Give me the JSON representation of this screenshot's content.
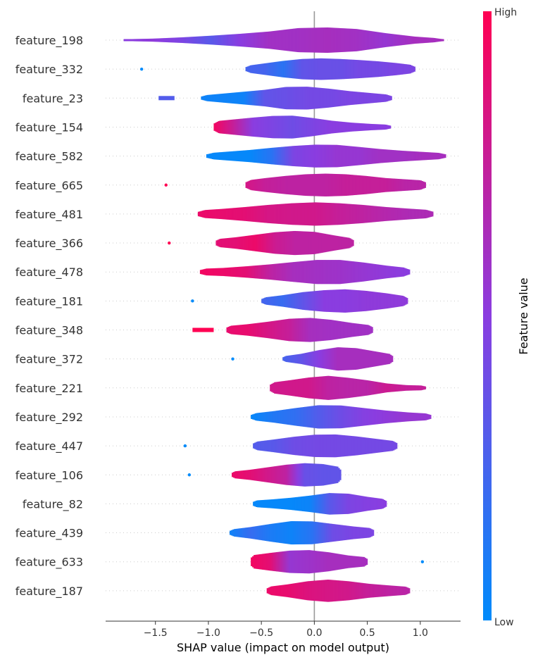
{
  "chart_data": {
    "type": "violin",
    "xlabel": "SHAP value (impact on model output)",
    "xlim": [
      -1.97,
      1.38
    ],
    "xticks": [
      -1.5,
      -1.0,
      -0.5,
      0.0,
      0.5,
      1.0
    ],
    "xtick_labels": [
      "−1.5",
      "−1.0",
      "−0.5",
      "0.0",
      "0.5",
      "1.0"
    ],
    "colorbar": {
      "title": "Feature value",
      "high_label": "High",
      "low_label": "Low",
      "low_color": "#008bfb",
      "high_color": "#ff0052"
    },
    "features": [
      {
        "name": "feature_198",
        "min": -1.8,
        "max": 1.22,
        "outliers": [],
        "w": [
          0.07,
          0.12,
          0.22,
          0.35,
          0.5,
          0.68,
          0.95,
          1.0,
          0.88,
          0.55,
          0.28,
          0.12
        ],
        "c": [
          0.5,
          0.52,
          0.45,
          0.32,
          0.5,
          0.6,
          0.6,
          0.62,
          0.6,
          0.55,
          0.62,
          0.62
        ]
      },
      {
        "name": "feature_332",
        "min": -0.65,
        "max": 0.95,
        "outliers": [
          {
            "x": -1.63,
            "c": 0.0
          }
        ],
        "w": [
          0.25,
          0.45,
          0.65,
          0.8,
          0.85,
          0.8,
          0.72,
          0.62,
          0.48,
          0.3
        ],
        "c": [
          0.25,
          0.25,
          0.15,
          0.35,
          0.38,
          0.38,
          0.42,
          0.42,
          0.45,
          0.45
        ]
      },
      {
        "name": "feature_23",
        "min": -1.07,
        "max": 0.73,
        "outliers": [],
        "segments": [
          {
            "from": -1.47,
            "to": -1.32,
            "c": 0.3
          }
        ],
        "w": [
          0.2,
          0.35,
          0.5,
          0.65,
          0.88,
          0.9,
          0.75,
          0.55,
          0.4,
          0.25
        ],
        "c": [
          0.05,
          0.05,
          0.05,
          0.35,
          0.38,
          0.42,
          0.42,
          0.45,
          0.45,
          0.45
        ]
      },
      {
        "name": "feature_154",
        "min": -0.95,
        "max": 0.72,
        "outliers": [],
        "w": [
          0.45,
          0.6,
          0.75,
          0.88,
          0.9,
          0.72,
          0.5,
          0.35,
          0.25,
          0.18
        ],
        "c": [
          0.95,
          0.75,
          0.5,
          0.45,
          0.4,
          0.45,
          0.5,
          0.5,
          0.5,
          0.5
        ]
      },
      {
        "name": "feature_582",
        "min": -1.02,
        "max": 1.24,
        "outliers": [],
        "w": [
          0.22,
          0.35,
          0.48,
          0.65,
          0.8,
          0.9,
          0.88,
          0.72,
          0.55,
          0.42,
          0.32,
          0.22
        ],
        "c": [
          0.02,
          0.02,
          0.02,
          0.15,
          0.45,
          0.5,
          0.55,
          0.55,
          0.6,
          0.6,
          0.62,
          0.62
        ]
      },
      {
        "name": "feature_665",
        "min": -0.65,
        "max": 1.05,
        "outliers": [
          {
            "x": -1.4,
            "c": 1.0
          }
        ],
        "w": [
          0.35,
          0.55,
          0.72,
          0.85,
          0.9,
          0.85,
          0.72,
          0.55,
          0.45,
          0.35
        ],
        "c": [
          0.82,
          0.75,
          0.72,
          0.72,
          0.72,
          0.75,
          0.75,
          0.75,
          0.7,
          0.7
        ]
      },
      {
        "name": "feature_481",
        "min": -1.1,
        "max": 1.12,
        "outliers": [],
        "w": [
          0.28,
          0.4,
          0.55,
          0.72,
          0.85,
          0.92,
          0.85,
          0.72,
          0.55,
          0.42,
          0.3
        ],
        "c": [
          0.92,
          0.9,
          0.88,
          0.82,
          0.8,
          0.8,
          0.75,
          0.72,
          0.68,
          0.65,
          0.65
        ]
      },
      {
        "name": "feature_366",
        "min": -0.93,
        "max": 0.37,
        "outliers": [
          {
            "x": -1.37,
            "c": 1.0
          }
        ],
        "w": [
          0.3,
          0.45,
          0.65,
          0.85,
          0.95,
          0.88,
          0.6,
          0.35
        ],
        "c": [
          0.88,
          0.88,
          0.92,
          0.78,
          0.72,
          0.72,
          0.72,
          0.72
        ]
      },
      {
        "name": "feature_478",
        "min": -1.08,
        "max": 0.9,
        "outliers": [],
        "w": [
          0.25,
          0.32,
          0.45,
          0.6,
          0.78,
          0.95,
          0.95,
          0.75,
          0.5,
          0.3
        ],
        "c": [
          0.95,
          0.92,
          0.88,
          0.72,
          0.62,
          0.6,
          0.58,
          0.55,
          0.52,
          0.5
        ]
      },
      {
        "name": "feature_181",
        "min": -0.5,
        "max": 0.88,
        "outliers": [
          {
            "x": -1.15,
            "c": 0.0
          }
        ],
        "w": [
          0.25,
          0.45,
          0.7,
          0.85,
          0.92,
          0.8,
          0.6,
          0.35
        ],
        "c": [
          0.25,
          0.2,
          0.35,
          0.5,
          0.5,
          0.52,
          0.52,
          0.52
        ]
      },
      {
        "name": "feature_348",
        "min": -0.83,
        "max": 0.55,
        "outliers": [],
        "segments": [
          {
            "from": -1.15,
            "to": -0.95,
            "c": 1.0
          }
        ],
        "w": [
          0.3,
          0.45,
          0.65,
          0.88,
          0.95,
          0.8,
          0.55,
          0.35
        ],
        "c": [
          0.9,
          0.9,
          0.82,
          0.75,
          0.62,
          0.6,
          0.6,
          0.6
        ]
      },
      {
        "name": "feature_372",
        "min": -0.3,
        "max": 0.74,
        "outliers": [
          {
            "x": -0.77,
            "c": 0.0
          }
        ],
        "w": [
          0.2,
          0.4,
          0.7,
          0.92,
          0.85,
          0.6,
          0.35
        ],
        "c": [
          0.25,
          0.35,
          0.5,
          0.62,
          0.62,
          0.62,
          0.62
        ]
      },
      {
        "name": "feature_221",
        "min": -0.42,
        "max": 1.05,
        "outliers": [],
        "w": [
          0.4,
          0.6,
          0.82,
          0.95,
          0.8,
          0.6,
          0.35,
          0.22,
          0.18
        ],
        "c": [
          0.8,
          0.8,
          0.8,
          0.72,
          0.7,
          0.7,
          0.78,
          0.75,
          0.75
        ]
      },
      {
        "name": "feature_292",
        "min": -0.6,
        "max": 1.1,
        "outliers": [],
        "w": [
          0.25,
          0.45,
          0.7,
          0.92,
          0.9,
          0.7,
          0.5,
          0.35,
          0.25
        ],
        "c": [
          0.02,
          0.12,
          0.18,
          0.3,
          0.4,
          0.48,
          0.52,
          0.55,
          0.55
        ]
      },
      {
        "name": "feature_447",
        "min": -0.58,
        "max": 0.78,
        "outliers": [
          {
            "x": -1.22,
            "c": 0.0
          }
        ],
        "w": [
          0.3,
          0.5,
          0.72,
          0.88,
          0.9,
          0.75,
          0.55,
          0.35
        ],
        "c": [
          0.3,
          0.32,
          0.4,
          0.42,
          0.42,
          0.42,
          0.42,
          0.42
        ]
      },
      {
        "name": "feature_106",
        "min": -0.78,
        "max": 0.25,
        "outliers": [
          {
            "x": -1.18,
            "c": 0.0
          }
        ],
        "w": [
          0.25,
          0.4,
          0.6,
          0.8,
          0.92,
          0.85,
          0.6
        ],
        "c": [
          0.92,
          0.88,
          0.8,
          0.72,
          0.38,
          0.35,
          0.35
        ]
      },
      {
        "name": "feature_82",
        "min": -0.58,
        "max": 0.68,
        "outliers": [],
        "w": [
          0.25,
          0.35,
          0.48,
          0.65,
          0.85,
          0.8,
          0.55,
          0.35
        ],
        "c": [
          0.02,
          0.02,
          0.02,
          0.05,
          0.32,
          0.45,
          0.48,
          0.5
        ]
      },
      {
        "name": "feature_439",
        "min": -0.8,
        "max": 0.56,
        "outliers": [],
        "w": [
          0.25,
          0.45,
          0.7,
          0.92,
          0.9,
          0.7,
          0.5,
          0.35
        ],
        "c": [
          0.05,
          0.2,
          0.1,
          0.05,
          0.15,
          0.4,
          0.45,
          0.45
        ]
      },
      {
        "name": "feature_633",
        "min": -0.6,
        "max": 0.5,
        "outliers": [
          {
            "x": 1.02,
            "c": 0.0
          }
        ],
        "w": [
          0.5,
          0.7,
          0.88,
          0.92,
          0.75,
          0.5,
          0.35
        ],
        "c": [
          0.95,
          0.88,
          0.55,
          0.58,
          0.62,
          0.62,
          0.62
        ]
      },
      {
        "name": "feature_187",
        "min": -0.45,
        "max": 0.9,
        "outliers": [],
        "w": [
          0.3,
          0.5,
          0.75,
          0.88,
          0.75,
          0.55,
          0.42,
          0.3
        ],
        "c": [
          0.92,
          0.9,
          0.85,
          0.82,
          0.8,
          0.75,
          0.72,
          0.7
        ]
      }
    ]
  }
}
